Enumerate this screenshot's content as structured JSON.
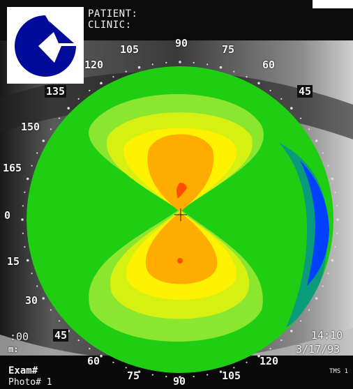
{
  "header": {
    "patient_label": "PATIENT:",
    "clinic_label": "CLINIC:"
  },
  "logo": {
    "icon": "clinic-logo-icon",
    "color": "#000b99"
  },
  "angles": {
    "top": [
      "105",
      "90",
      "75",
      "120",
      "60",
      "135",
      "45",
      "150",
      "165"
    ],
    "left": [
      "0",
      "15",
      "30",
      "45"
    ],
    "bottom": [
      "60",
      "75",
      "90",
      "105",
      "120"
    ]
  },
  "overlay": {
    "time": "14:10",
    "date": "3/17/93",
    "left_time": ":00",
    "left_m": "m:",
    "exam": "Exam#",
    "photo": "Photo# 1",
    "device": "TMS 1"
  },
  "colormap": {
    "outer_green": "#1fce12",
    "light_green": "#8ae62f",
    "yellow_green": "#d6f012",
    "yellow": "#fff200",
    "orange": "#ffac00",
    "red": "#ff4e00",
    "teal": "#0a9c7a",
    "blue": "#0040ff"
  }
}
